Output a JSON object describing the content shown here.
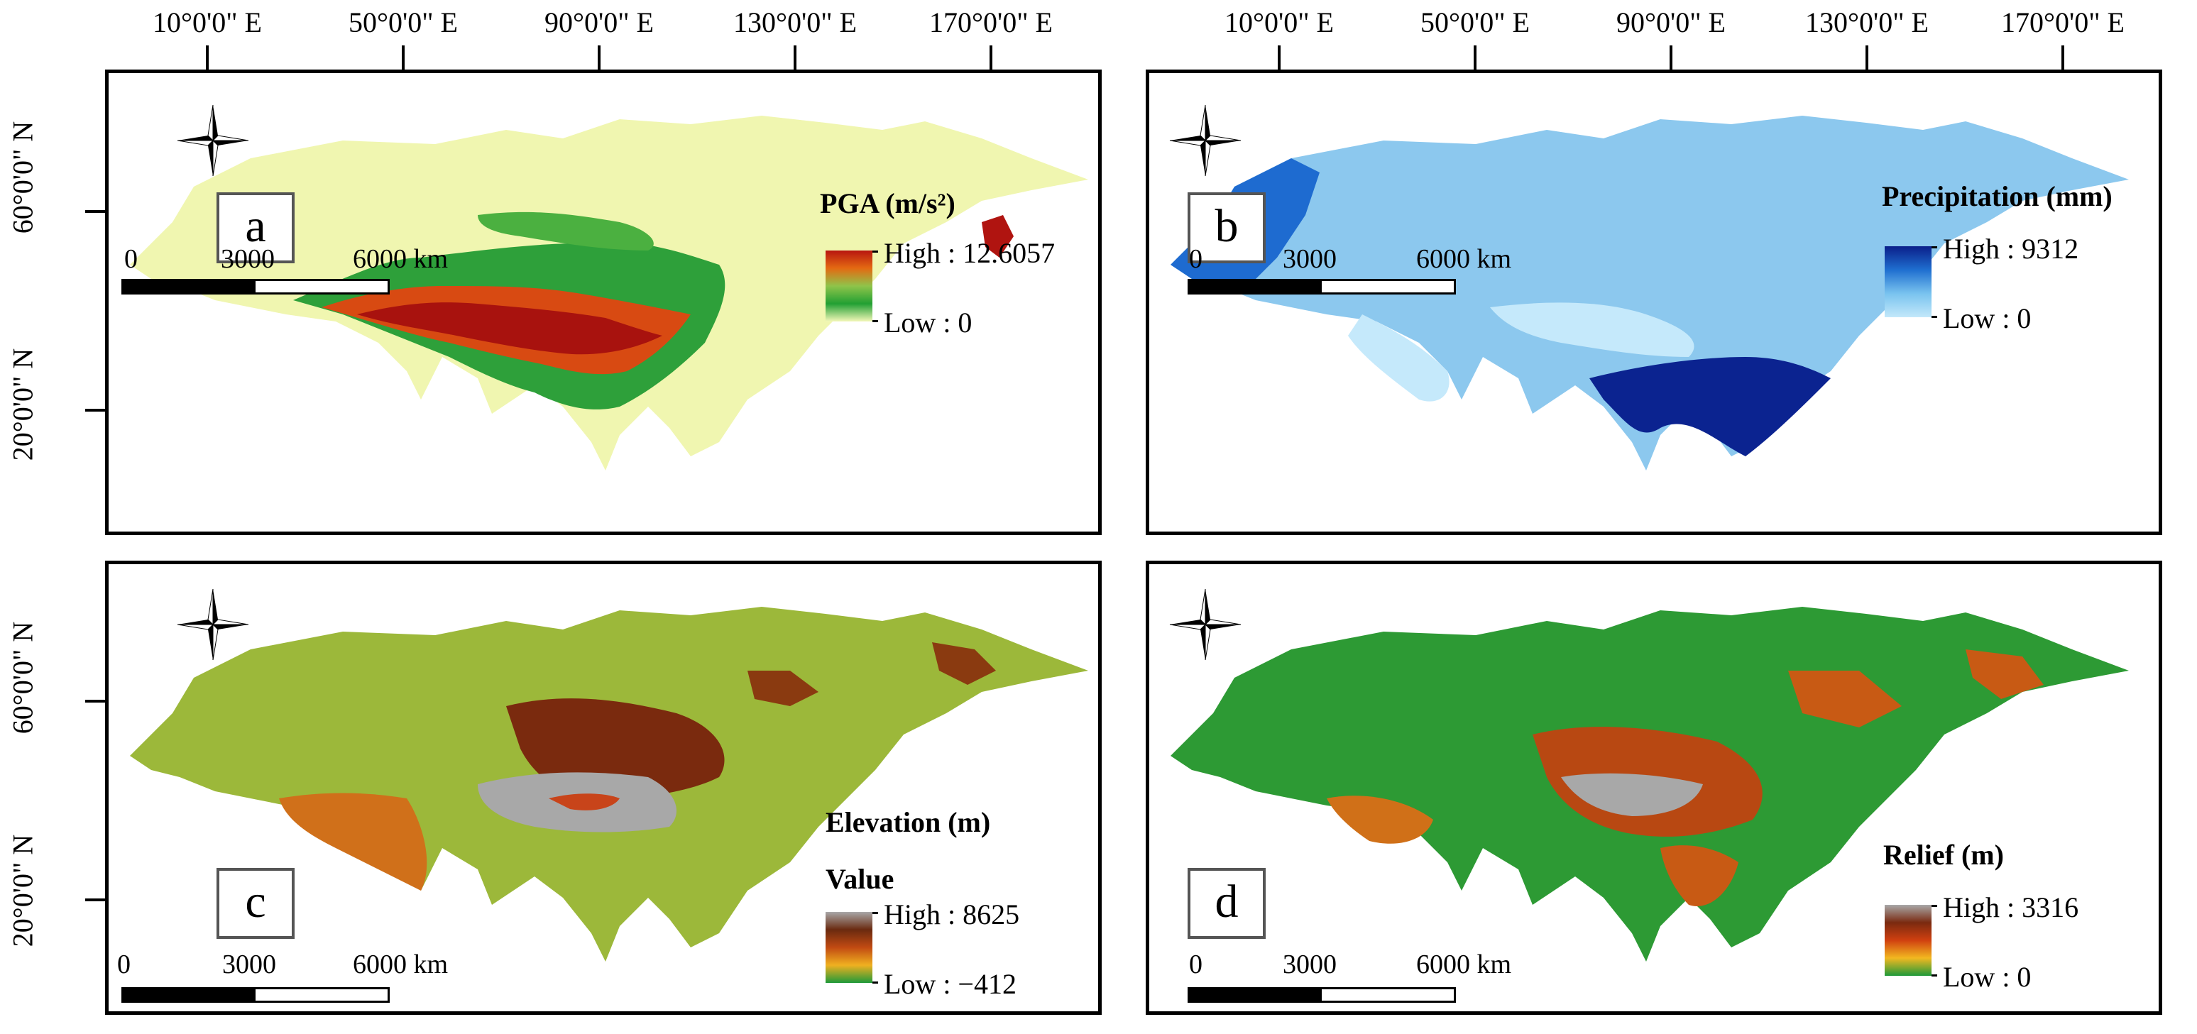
{
  "graticule": {
    "longitudes": [
      "10°0'0\" E",
      "50°0'0\" E",
      "90°0'0\" E",
      "130°0'0\" E",
      "170°0'0\" E"
    ],
    "latitudes": [
      "60°0'0\" N",
      "20°0'0\" N"
    ]
  },
  "panels": [
    {
      "id": "a",
      "letter": "a",
      "theme": "pga",
      "legend": {
        "title": "PGA (m/s²)",
        "subtitle": "",
        "high": "High : 12.6057",
        "low": "Low : 0"
      },
      "ramp": [
        "#b81610",
        "#e46a12",
        "#8fc44a",
        "#22a033",
        "#f3f8b8"
      ],
      "base": "#f0f6b0"
    },
    {
      "id": "b",
      "letter": "b",
      "theme": "precip",
      "legend": {
        "title": "Precipitation (mm)",
        "subtitle": "",
        "high": "High : 9312",
        "low": "Low : 0"
      },
      "ramp": [
        "#0a1f8a",
        "#1f6fd0",
        "#79c3ef",
        "#c3e8fa"
      ],
      "base": "#8cc8ee"
    },
    {
      "id": "c",
      "letter": "c",
      "theme": "elev",
      "legend": {
        "title": "Elevation (m)",
        "subtitle": "Value",
        "high": "High : 8625",
        "low": "Low : −412"
      },
      "ramp": [
        "#a8a8a8",
        "#6a2a10",
        "#c14a12",
        "#f0b020",
        "#1f9a3a"
      ],
      "base": "#9cb83a"
    },
    {
      "id": "d",
      "letter": "d",
      "theme": "relief",
      "legend": {
        "title": "Relief (m)",
        "subtitle": "",
        "high": "High : 3316",
        "low": "Low : 0"
      },
      "ramp": [
        "#a8a8a8",
        "#7a2a10",
        "#d04010",
        "#f2b820",
        "#1f9a3a"
      ],
      "base": "#2d9a34"
    }
  ],
  "scalebar": {
    "labels": [
      "0",
      "3000",
      "6000 km"
    ]
  },
  "compass": {
    "n": "N",
    "s": "S",
    "e": "E",
    "w": "W"
  },
  "colors": {
    "frame": "#000000",
    "label_box_border": "#555555",
    "graticule": "#000000"
  }
}
